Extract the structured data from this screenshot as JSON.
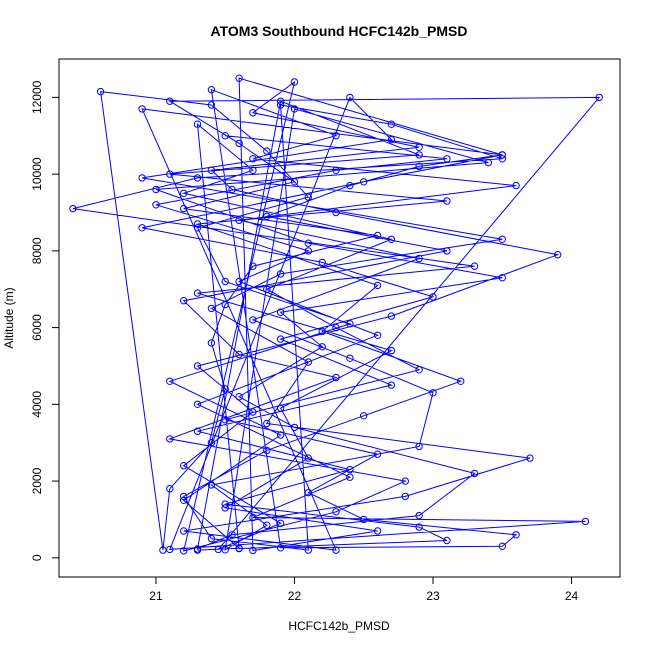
{
  "chart_data": {
    "type": "line",
    "title": "ATOM3 Southbound HCFC142b_PMSD",
    "xlabel": "HCFC142b_PMSD",
    "ylabel": "Altitude (m)",
    "xlim": [
      20.3,
      24.35
    ],
    "ylim": [
      -500,
      13000
    ],
    "xticks": [
      21,
      22,
      23,
      24
    ],
    "yticks": [
      0,
      2000,
      4000,
      6000,
      8000,
      10000,
      12000
    ],
    "color": "#0000ff",
    "marker": "open-circle",
    "grid": false,
    "legend": "none",
    "series": [
      {
        "points": [
          [
            21.3,
            200
          ],
          [
            21.6,
            250
          ],
          [
            21.2,
            1500
          ],
          [
            21.9,
            3200
          ],
          [
            21.1,
            4600
          ],
          [
            22.4,
            6100
          ],
          [
            21.5,
            7200
          ],
          [
            21.3,
            8600
          ],
          [
            22.1,
            9400
          ],
          [
            21.8,
            10600
          ],
          [
            21.4,
            11800
          ],
          [
            20.6,
            12150
          ],
          [
            21.05,
            200
          ],
          [
            21.1,
            1800
          ],
          [
            21.4,
            3000
          ],
          [
            21.5,
            4400
          ],
          [
            21.4,
            5600
          ],
          [
            21.5,
            6600
          ],
          [
            21.7,
            7600
          ],
          [
            22.6,
            8400
          ],
          [
            21.2,
            9100
          ],
          [
            22.0,
            9800
          ],
          [
            21.6,
            10800
          ],
          [
            21.1,
            11900
          ],
          [
            24.2,
            12000
          ],
          [
            21.45,
            220
          ],
          [
            21.9,
            900
          ],
          [
            21.2,
            2400
          ],
          [
            21.7,
            3800
          ],
          [
            21.3,
            5000
          ],
          [
            22.7,
            6300
          ],
          [
            23.9,
            7900
          ],
          [
            22.3,
            9000
          ],
          [
            21.55,
            9600
          ],
          [
            21.4,
            10100
          ],
          [
            22.9,
            10700
          ],
          [
            21.7,
            11600
          ],
          [
            22.0,
            12400
          ],
          [
            21.2,
            180
          ],
          [
            22.3,
            1200
          ],
          [
            22.8,
            2000
          ],
          [
            21.1,
            3100
          ],
          [
            22.3,
            4700
          ],
          [
            21.6,
            5300
          ],
          [
            21.2,
            6700
          ],
          [
            23.1,
            8000
          ],
          [
            21.8,
            8900
          ],
          [
            22.4,
            9700
          ],
          [
            22.9,
            10200
          ],
          [
            23.5,
            10500
          ],
          [
            21.6,
            12500
          ],
          [
            21.7,
            190
          ],
          [
            22.6,
            700
          ],
          [
            21.5,
            1300
          ],
          [
            22.1,
            2600
          ],
          [
            21.9,
            3900
          ],
          [
            22.7,
            5400
          ],
          [
            21.3,
            6900
          ],
          [
            23.3,
            7600
          ],
          [
            20.4,
            9100
          ],
          [
            21.3,
            9900
          ],
          [
            23.5,
            10400
          ],
          [
            22.7,
            11300
          ],
          [
            21.9,
            11800
          ],
          [
            22.1,
            200
          ],
          [
            21.4,
            500
          ],
          [
            21.2,
            1600
          ],
          [
            21.8,
            2800
          ],
          [
            22.5,
            3700
          ],
          [
            23.2,
            4600
          ],
          [
            22.2,
            5900
          ],
          [
            22.6,
            7100
          ],
          [
            21.3,
            8700
          ],
          [
            23.1,
            9300
          ],
          [
            21.1,
            10000
          ],
          [
            22.9,
            10500
          ],
          [
            21.9,
            11900
          ],
          [
            21.3,
            230
          ],
          [
            21.55,
            600
          ],
          [
            22.9,
            1100
          ],
          [
            23.3,
            2200
          ],
          [
            22.0,
            3400
          ],
          [
            21.6,
            4200
          ],
          [
            22.2,
            5500
          ],
          [
            21.9,
            6400
          ],
          [
            23.5,
            7300
          ],
          [
            22.1,
            8200
          ],
          [
            21.0,
            9600
          ],
          [
            23.4,
            10300
          ],
          [
            22.0,
            11700
          ],
          [
            21.5,
            210
          ],
          [
            21.8,
            850
          ],
          [
            21.4,
            1900
          ],
          [
            22.9,
            2900
          ],
          [
            23.0,
            4300
          ],
          [
            22.4,
            5200
          ],
          [
            21.7,
            6200
          ],
          [
            22.9,
            7800
          ],
          [
            21.6,
            8800
          ],
          [
            23.6,
            9700
          ],
          [
            21.7,
            10400
          ],
          [
            22.3,
            11000
          ],
          [
            21.4,
            12200
          ],
          [
            21.9,
            260
          ],
          [
            23.5,
            300
          ],
          [
            23.6,
            600
          ],
          [
            22.5,
            1000
          ],
          [
            22.1,
            1700
          ],
          [
            22.6,
            2700
          ],
          [
            21.5,
            3600
          ],
          [
            22.9,
            4900
          ],
          [
            22.3,
            6000
          ],
          [
            21.8,
            7000
          ],
          [
            22.7,
            8300
          ],
          [
            21.2,
            9500
          ],
          [
            21.7,
            10100
          ],
          [
            21.3,
            11300
          ],
          [
            21.6,
            240
          ],
          [
            23.1,
            450
          ],
          [
            22.9,
            800
          ],
          [
            21.5,
            1400
          ],
          [
            22.4,
            2300
          ],
          [
            21.3,
            3300
          ],
          [
            22.7,
            4500
          ],
          [
            21.9,
            5700
          ],
          [
            23.0,
            6800
          ],
          [
            22.2,
            7700
          ],
          [
            20.9,
            8600
          ],
          [
            22.5,
            9800
          ],
          [
            23.5,
            10500
          ],
          [
            20.9,
            11700
          ],
          [
            22.3,
            200
          ],
          [
            21.2,
            700
          ],
          [
            22.8,
            1600
          ],
          [
            23.7,
            2600
          ],
          [
            21.8,
            3500
          ],
          [
            22.1,
            5100
          ],
          [
            21.4,
            6500
          ],
          [
            21.9,
            7400
          ],
          [
            23.5,
            8300
          ],
          [
            20.9,
            9900
          ],
          [
            22.7,
            10900
          ],
          [
            22.4,
            12000
          ],
          [
            21.1,
            220
          ],
          [
            24.1,
            950
          ],
          [
            21.7,
            1050
          ],
          [
            22.4,
            2100
          ],
          [
            21.3,
            4000
          ],
          [
            22.6,
            5800
          ],
          [
            21.6,
            7200
          ],
          [
            22.1,
            8000
          ],
          [
            21.0,
            9200
          ],
          [
            22.3,
            10100
          ],
          [
            23.1,
            10400
          ],
          [
            21.5,
            11000
          ]
        ]
      }
    ]
  }
}
